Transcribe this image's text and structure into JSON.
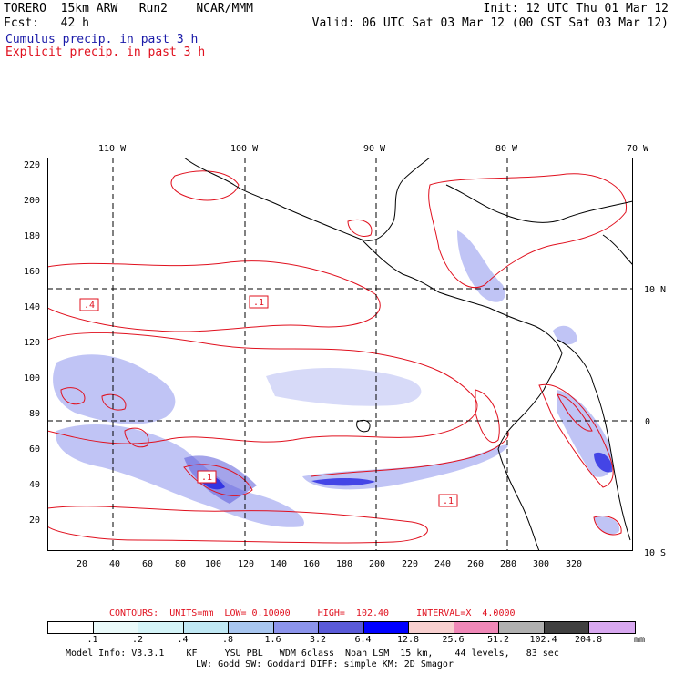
{
  "header": {
    "line1_left": "TORERO  15km ARW   Run2    NCAR/MMM",
    "line1_right": "Init: 12 UTC Thu 01 Mar 12",
    "line2_left": "Fcst:   42 h",
    "line2_right": "Valid: 06 UTC Sat 03 Mar 12 (00 CST Sat 03 Mar 12)",
    "line3": "Cumulus precip. in past 3 h",
    "line4": "Explicit precip. in past 3 h",
    "line3_color": "#1a1aa8",
    "line4_color": "#e0101e"
  },
  "map": {
    "lon_labels": [
      "110 W",
      "100 W",
      "90 W",
      "80 W",
      "70 W"
    ],
    "lat_labels": [
      "10 N",
      "0",
      "10 S"
    ],
    "y_ticks": [
      "220",
      "200",
      "180",
      "160",
      "140",
      "120",
      "100",
      "80",
      "60",
      "40",
      "20"
    ],
    "x_ticks": [
      "20",
      "40",
      "60",
      "80",
      "100",
      "120",
      "140",
      "160",
      "180",
      "200",
      "220",
      "240",
      "260",
      "280",
      "300",
      "320"
    ],
    "contour_boxes": [
      ".4",
      ".1",
      ".1",
      ".1"
    ],
    "coastline_color": "#000000",
    "explicit_color": "#e0101e"
  },
  "contours_line": "CONTOURS:  UNITS=mm  LOW= 0.10000     HIGH=  102.40     INTERVAL=X  4.0000",
  "legend": {
    "colors": [
      "#ffffff",
      "#eafafa",
      "#d4f4f8",
      "#c0e8f4",
      "#a8c6f0",
      "#8c94ec",
      "#5a5ad8",
      "#0000ff",
      "#f8d0d0",
      "#f088b8",
      "#b0b0b0",
      "#404040",
      "#d8a8f0"
    ],
    "labels": [
      ".1",
      ".2",
      ".4",
      ".8",
      "1.6",
      "3.2",
      "6.4",
      "12.8",
      "25.6",
      "51.2",
      "102.4",
      "204.8"
    ],
    "unit": "mm"
  },
  "footer": {
    "line1": "Model Info: V3.3.1    KF     YSU PBL   WDM 6class  Noah LSM  15 km,    44 levels,   83 sec",
    "line2": "LW: Godd SW: Goddard DIFF: simple KM: 2D Smagor"
  }
}
